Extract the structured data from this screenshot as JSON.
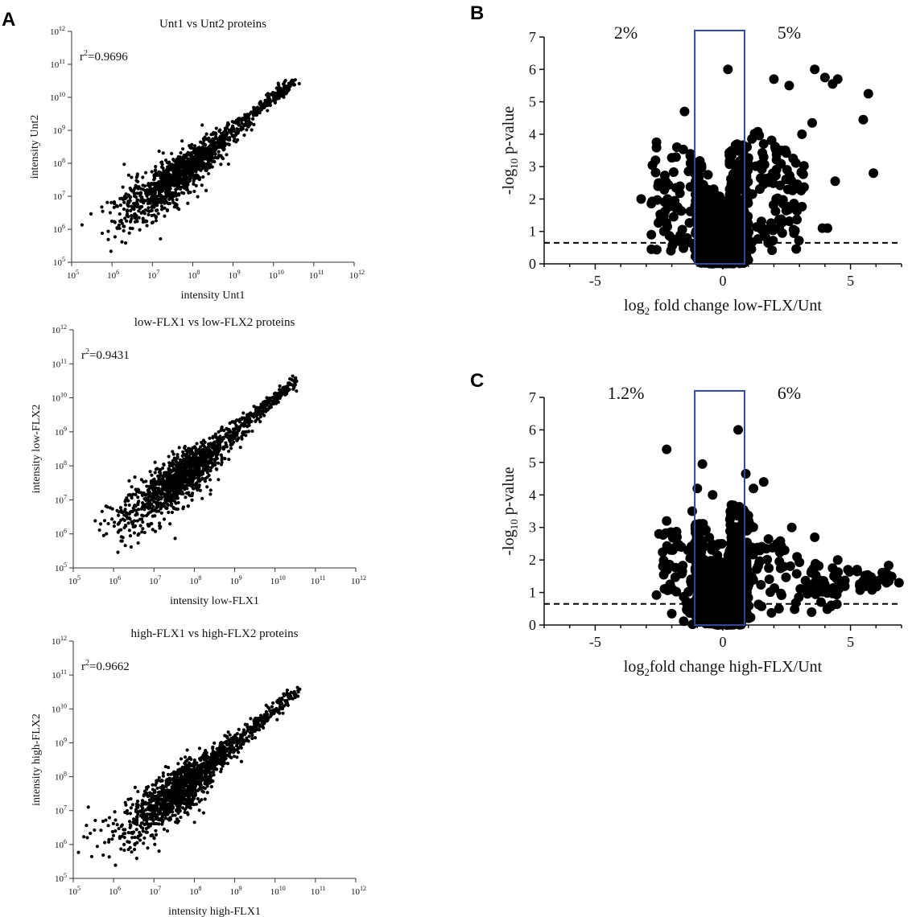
{
  "panels": {
    "A": {
      "letter": "A"
    },
    "B": {
      "letter": "B"
    },
    "C": {
      "letter": "C"
    }
  },
  "chart_data": [
    {
      "id": "A1",
      "type": "scatter",
      "title": "Unt1 vs Unt2 proteins",
      "xlabel": "intensity Unt1",
      "ylabel": "intensity Unt2",
      "annotation_r2": "0.9696",
      "xscale": "log",
      "yscale": "log",
      "xlim_exp": [
        5,
        12
      ],
      "ylim_exp": [
        5,
        12
      ],
      "tick_exponents": [
        5,
        6,
        7,
        8,
        9,
        10,
        11,
        12
      ],
      "r2": 0.9696,
      "n_points": 1400,
      "max_exponent": 10.7
    },
    {
      "id": "A2",
      "type": "scatter",
      "title": "low-FLX1 vs low-FLX2 proteins",
      "xlabel": "intensity low-FLX1",
      "ylabel": "intensity low-FLX2",
      "annotation_r2": "0.9431",
      "xscale": "log",
      "yscale": "log",
      "xlim_exp": [
        5,
        12
      ],
      "ylim_exp": [
        5,
        12
      ],
      "tick_exponents": [
        5,
        6,
        7,
        8,
        9,
        10,
        11,
        12
      ],
      "r2": 0.9431,
      "n_points": 1500,
      "max_exponent": 10.7
    },
    {
      "id": "A3",
      "type": "scatter",
      "title": "high-FLX1 vs high-FLX2 proteins",
      "xlabel": "intensity high-FLX1",
      "ylabel": "intensity high-FLX2",
      "annotation_r2": "0.9662",
      "xscale": "log",
      "yscale": "log",
      "xlim_exp": [
        5,
        12
      ],
      "ylim_exp": [
        5,
        12
      ],
      "tick_exponents": [
        5,
        6,
        7,
        8,
        9,
        10,
        11,
        12
      ],
      "r2": 0.9662,
      "n_points": 1500,
      "max_exponent": 10.7
    },
    {
      "id": "B",
      "type": "scatter",
      "subtype": "volcano",
      "xlabel_prefix": "log",
      "xlabel_sub": "2",
      "xlabel_rest": " fold change low-FLX/Unt",
      "ylabel_prefix": "-log",
      "ylabel_sub": "10",
      "ylabel_rest": " p-value",
      "xlim": [
        -7,
        7
      ],
      "ylim": [
        0,
        7
      ],
      "xticks": [
        -5,
        0,
        5
      ],
      "yticks": [
        0,
        1,
        2,
        3,
        4,
        5,
        6,
        7
      ],
      "significance_threshold": 0.65,
      "box_x": [
        -1.1,
        0.85
      ],
      "box_top": 7.2,
      "pct_left": "2%",
      "pct_right": "5%",
      "highlight_points": [
        [
          3.6,
          6.0
        ],
        [
          4.0,
          5.75
        ],
        [
          4.5,
          5.7
        ],
        [
          5.7,
          5.25
        ],
        [
          4.3,
          5.55
        ],
        [
          2.0,
          5.7
        ],
        [
          2.6,
          5.5
        ],
        [
          5.5,
          4.45
        ],
        [
          5.9,
          2.8
        ],
        [
          4.4,
          2.55
        ],
        [
          3.5,
          4.35
        ],
        [
          3.1,
          4.0
        ],
        [
          3.9,
          1.1
        ],
        [
          4.1,
          1.1
        ],
        [
          -1.5,
          4.7
        ],
        [
          -2.6,
          3.75
        ],
        [
          -3.2,
          2.0
        ],
        [
          -2.8,
          0.45
        ],
        [
          1.6,
          3.7
        ],
        [
          2.3,
          3.5
        ],
        [
          -1.8,
          3.6
        ],
        [
          0.2,
          6.0
        ]
      ]
    },
    {
      "id": "C",
      "type": "scatter",
      "subtype": "volcano",
      "xlabel_prefix": "log",
      "xlabel_sub": "2",
      "xlabel_rest": "fold change high-FLX/Unt",
      "ylabel_prefix": "-log",
      "ylabel_sub": "10",
      "ylabel_rest": " p-value",
      "xlim": [
        -7,
        7
      ],
      "ylim": [
        0,
        7
      ],
      "xticks": [
        -5,
        0,
        5
      ],
      "yticks": [
        0,
        1,
        2,
        3,
        4,
        5,
        6,
        7
      ],
      "significance_threshold": 0.65,
      "box_x": [
        -1.1,
        0.85
      ],
      "box_top": 7.2,
      "pct_left": "1.2%",
      "pct_right": "6%",
      "highlight_points": [
        [
          0.6,
          6.0
        ],
        [
          -2.2,
          5.4
        ],
        [
          -0.8,
          4.95
        ],
        [
          -1.0,
          4.2
        ],
        [
          -1.2,
          3.5
        ],
        [
          -2.2,
          3.2
        ],
        [
          -2.5,
          2.8
        ],
        [
          -2.6,
          0.92
        ],
        [
          6.9,
          1.3
        ],
        [
          6.5,
          1.35
        ],
        [
          6.2,
          1.4
        ],
        [
          5.8,
          1.3
        ],
        [
          5.5,
          1.35
        ],
        [
          4.5,
          2.0
        ],
        [
          4.9,
          1.7
        ],
        [
          4.3,
          1.75
        ],
        [
          3.6,
          2.7
        ],
        [
          2.7,
          3.0
        ],
        [
          1.6,
          4.4
        ],
        [
          1.2,
          4.2
        ],
        [
          0.9,
          4.65
        ],
        [
          1.8,
          1.75
        ],
        [
          2.2,
          0.5
        ],
        [
          -2.0,
          0.35
        ],
        [
          -0.4,
          4.0
        ]
      ]
    }
  ]
}
